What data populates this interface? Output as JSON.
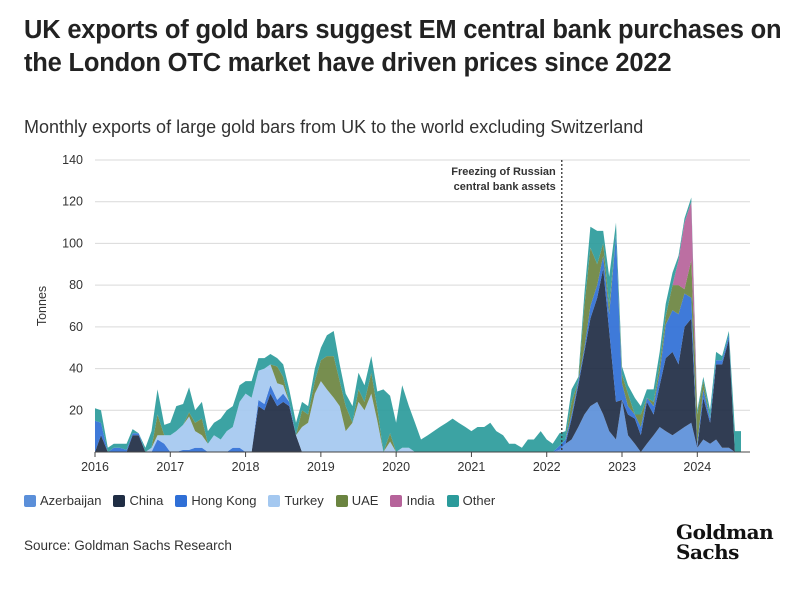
{
  "title": "UK exports of gold bars suggest EM central bank purchases on the London OTC market have driven prices since 2022",
  "subtitle": "Monthly exports of large gold bars from UK to the world excluding Switzerland",
  "source": "Source: Goldman Sachs Research",
  "logo": {
    "line1": "Goldman",
    "line2": "Sachs"
  },
  "colors": {
    "Azerbaijan": "#5b8fd9",
    "China": "#1f2d44",
    "Hong Kong": "#2f6fd6",
    "Turkey": "#a4c8f0",
    "UAE": "#6b8440",
    "India": "#b6639a",
    "Other": "#2b9b9b"
  },
  "chart_data": {
    "type": "area",
    "stacked": true,
    "title": "Monthly exports of large gold bars from UK to the world excluding Switzerland",
    "xlabel": "",
    "ylabel": "Tonnes",
    "xlim": [
      2016,
      2024.7
    ],
    "ylim": [
      0,
      140
    ],
    "yticks": [
      20,
      40,
      60,
      80,
      100,
      120,
      140
    ],
    "xticks": [
      2016,
      2017,
      2018,
      2019,
      2020,
      2021,
      2022,
      2023,
      2024
    ],
    "grid": "horizontal",
    "legend_position": "bottom",
    "annotation": {
      "x": 2022.2,
      "text_lines": [
        "Freezing of Russian",
        "central bank assets"
      ]
    },
    "x": [
      2016.0,
      2016.08,
      2016.17,
      2016.25,
      2016.33,
      2016.42,
      2016.5,
      2016.58,
      2016.67,
      2016.75,
      2016.83,
      2016.92,
      2017.0,
      2017.08,
      2017.17,
      2017.25,
      2017.33,
      2017.42,
      2017.5,
      2017.58,
      2017.67,
      2017.75,
      2017.83,
      2017.92,
      2018.0,
      2018.08,
      2018.17,
      2018.25,
      2018.33,
      2018.42,
      2018.5,
      2018.58,
      2018.67,
      2018.75,
      2018.83,
      2018.92,
      2019.0,
      2019.08,
      2019.17,
      2019.25,
      2019.33,
      2019.42,
      2019.5,
      2019.58,
      2019.67,
      2019.75,
      2019.83,
      2019.92,
      2020.0,
      2020.08,
      2020.17,
      2020.25,
      2020.33,
      2020.42,
      2020.5,
      2020.58,
      2020.67,
      2020.75,
      2020.83,
      2020.92,
      2021.0,
      2021.08,
      2021.17,
      2021.25,
      2021.33,
      2021.42,
      2021.5,
      2021.58,
      2021.67,
      2021.75,
      2021.83,
      2021.92,
      2022.0,
      2022.08,
      2022.17,
      2022.25,
      2022.33,
      2022.42,
      2022.5,
      2022.58,
      2022.67,
      2022.75,
      2022.83,
      2022.92,
      2023.0,
      2023.08,
      2023.17,
      2023.25,
      2023.33,
      2023.42,
      2023.5,
      2023.58,
      2023.67,
      2023.75,
      2023.83,
      2023.92,
      2024.0,
      2024.08,
      2024.17,
      2024.25,
      2024.33,
      2024.42,
      2024.5,
      2024.58
    ],
    "series": [
      {
        "name": "Azerbaijan",
        "values": [
          0,
          0,
          0,
          0,
          0,
          0,
          0,
          0,
          0,
          0,
          0,
          0,
          0,
          0,
          0,
          0,
          0,
          0,
          0,
          0,
          0,
          0,
          0,
          0,
          0,
          0,
          0,
          0,
          0,
          0,
          0,
          0,
          0,
          0,
          0,
          0,
          0,
          0,
          0,
          0,
          0,
          0,
          0,
          0,
          0,
          0,
          0,
          0,
          0,
          0,
          0,
          0,
          0,
          0,
          0,
          0,
          0,
          0,
          0,
          0,
          0,
          0,
          0,
          0,
          0,
          0,
          0,
          0,
          0,
          0,
          0,
          0,
          0,
          0,
          1,
          4,
          6,
          12,
          18,
          22,
          24,
          18,
          10,
          6,
          25,
          8,
          4,
          0,
          4,
          8,
          12,
          10,
          8,
          10,
          12,
          14,
          2,
          6,
          4,
          6,
          2,
          2,
          0,
          0
        ]
      },
      {
        "name": "China",
        "values": [
          0,
          8,
          0,
          0,
          0,
          0,
          8,
          8,
          0,
          0,
          0,
          0,
          0,
          0,
          0,
          0,
          0,
          0,
          0,
          0,
          0,
          0,
          0,
          0,
          0,
          0,
          22,
          20,
          28,
          22,
          24,
          22,
          8,
          0,
          0,
          0,
          0,
          0,
          0,
          0,
          0,
          0,
          0,
          0,
          0,
          0,
          0,
          0,
          0,
          0,
          0,
          0,
          0,
          0,
          0,
          0,
          0,
          0,
          0,
          0,
          0,
          0,
          0,
          0,
          0,
          0,
          0,
          0,
          0,
          0,
          0,
          0,
          0,
          0,
          0,
          0,
          10,
          20,
          30,
          42,
          50,
          70,
          48,
          18,
          0,
          10,
          12,
          8,
          20,
          10,
          20,
          35,
          40,
          32,
          48,
          50,
          0,
          20,
          10,
          36,
          40,
          52,
          0,
          0
        ]
      },
      {
        "name": "Hong Kong",
        "values": [
          15,
          6,
          0,
          2,
          2,
          1,
          1,
          1,
          0,
          0,
          6,
          4,
          0,
          0,
          1,
          1,
          2,
          2,
          0,
          0,
          0,
          0,
          2,
          2,
          0,
          0,
          3,
          3,
          4,
          3,
          4,
          2,
          0,
          0,
          0,
          0,
          0,
          0,
          0,
          0,
          0,
          0,
          0,
          0,
          0,
          0,
          0,
          0,
          0,
          0,
          0,
          0,
          0,
          0,
          0,
          0,
          0,
          0,
          0,
          0,
          0,
          0,
          0,
          0,
          0,
          0,
          0,
          0,
          0,
          0,
          0,
          0,
          0,
          0,
          2,
          2,
          2,
          2,
          2,
          6,
          6,
          6,
          8,
          80,
          8,
          4,
          2,
          4,
          2,
          4,
          6,
          16,
          20,
          24,
          16,
          10,
          2,
          4,
          2,
          2,
          2,
          2,
          0,
          0
        ]
      },
      {
        "name": "Turkey",
        "values": [
          0,
          0,
          0,
          0,
          0,
          0,
          0,
          0,
          0,
          2,
          2,
          4,
          8,
          10,
          12,
          16,
          8,
          6,
          4,
          8,
          6,
          10,
          10,
          22,
          28,
          26,
          14,
          17,
          10,
          8,
          4,
          0,
          0,
          12,
          14,
          28,
          34,
          30,
          26,
          22,
          10,
          14,
          24,
          20,
          28,
          15,
          0,
          5,
          0,
          2,
          2,
          0,
          0,
          0,
          0,
          0,
          0,
          0,
          0,
          0,
          0,
          0,
          0,
          0,
          0,
          0,
          0,
          0,
          0,
          0,
          0,
          0,
          0,
          0,
          0,
          0,
          0,
          0,
          0,
          0,
          0,
          0,
          0,
          0,
          0,
          0,
          0,
          0,
          0,
          0,
          0,
          0,
          0,
          0,
          0,
          0,
          0,
          0,
          0,
          0,
          0,
          0,
          0,
          0
        ]
      },
      {
        "name": "UAE",
        "values": [
          0,
          0,
          0,
          0,
          0,
          0,
          0,
          0,
          0,
          0,
          10,
          0,
          0,
          0,
          0,
          2,
          4,
          8,
          0,
          0,
          0,
          0,
          0,
          0,
          0,
          0,
          0,
          0,
          0,
          8,
          4,
          0,
          0,
          8,
          4,
          6,
          10,
          16,
          20,
          12,
          12,
          0,
          6,
          4,
          10,
          6,
          0,
          4,
          0,
          0,
          0,
          0,
          0,
          0,
          0,
          0,
          0,
          0,
          0,
          0,
          0,
          0,
          0,
          0,
          0,
          0,
          0,
          0,
          0,
          0,
          0,
          0,
          0,
          0,
          0,
          0,
          6,
          0,
          20,
          28,
          10,
          6,
          4,
          0,
          4,
          6,
          0,
          6,
          0,
          2,
          4,
          4,
          12,
          14,
          2,
          18,
          14,
          4,
          0,
          0,
          0,
          0,
          0,
          0
        ]
      },
      {
        "name": "India",
        "values": [
          0,
          0,
          0,
          0,
          0,
          0,
          0,
          0,
          0,
          0,
          0,
          0,
          0,
          0,
          0,
          0,
          0,
          0,
          0,
          0,
          0,
          0,
          0,
          0,
          0,
          0,
          0,
          0,
          0,
          0,
          0,
          0,
          0,
          0,
          0,
          0,
          0,
          0,
          0,
          0,
          0,
          0,
          0,
          0,
          0,
          0,
          0,
          0,
          0,
          0,
          0,
          0,
          0,
          0,
          0,
          0,
          0,
          0,
          0,
          0,
          0,
          0,
          0,
          0,
          0,
          0,
          0,
          0,
          0,
          0,
          0,
          0,
          0,
          0,
          0,
          0,
          0,
          0,
          0,
          0,
          0,
          0,
          0,
          0,
          0,
          0,
          0,
          0,
          0,
          0,
          0,
          0,
          0,
          12,
          32,
          28,
          0,
          0,
          0,
          0,
          0,
          0,
          0,
          0
        ]
      },
      {
        "name": "Other",
        "values": [
          6,
          6,
          2,
          2,
          2,
          3,
          2,
          0,
          2,
          8,
          12,
          5,
          6,
          12,
          10,
          12,
          6,
          8,
          6,
          6,
          10,
          10,
          10,
          8,
          6,
          8,
          6,
          5,
          5,
          4,
          6,
          6,
          6,
          4,
          4,
          6,
          6,
          10,
          12,
          8,
          6,
          8,
          8,
          8,
          8,
          8,
          30,
          18,
          14,
          30,
          20,
          14,
          6,
          8,
          10,
          12,
          14,
          16,
          14,
          12,
          10,
          12,
          12,
          14,
          10,
          8,
          4,
          4,
          2,
          6,
          6,
          10,
          6,
          4,
          6,
          4,
          6,
          2,
          6,
          10,
          16,
          6,
          14,
          6,
          4,
          4,
          8,
          4,
          4,
          6,
          6,
          6,
          6,
          2,
          2,
          2,
          2,
          2,
          4,
          4,
          2,
          2,
          10,
          10
        ]
      }
    ]
  }
}
